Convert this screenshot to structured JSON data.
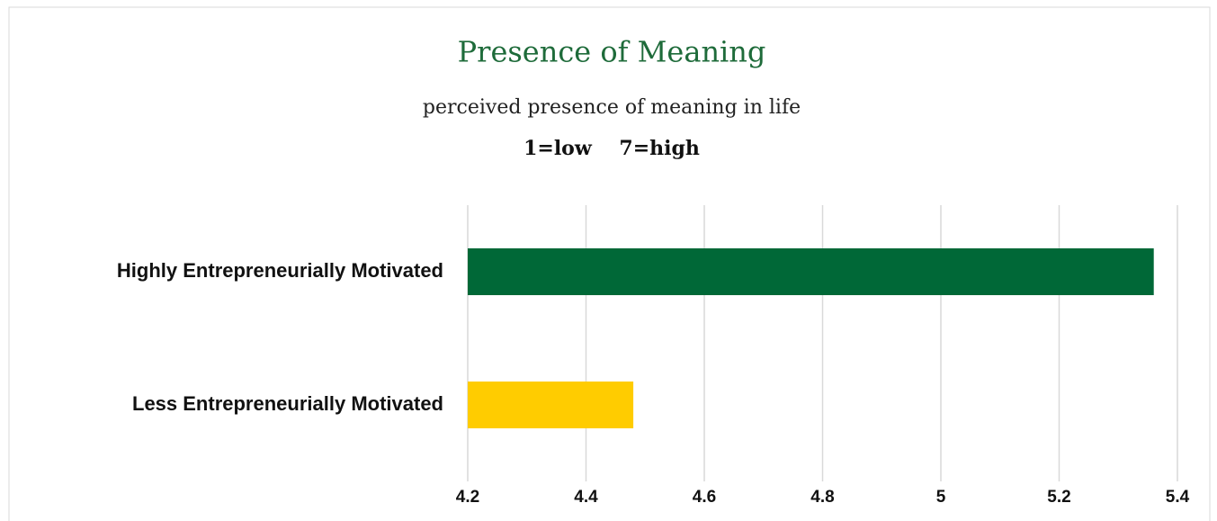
{
  "chart_data": {
    "type": "barh",
    "title": "Presence of Meaning",
    "subtitle": "perceived presence of meaning in life",
    "scale_note": "1=low    7=high",
    "categories": [
      "Highly Entrepreneurially Motivated",
      "Less Entrepreneurially Motivated"
    ],
    "values": [
      5.36,
      4.48
    ],
    "colors": [
      "#006837",
      "#ffcc00"
    ],
    "xlim": [
      4.2,
      5.4
    ],
    "xticks": [
      4.2,
      4.4,
      4.6,
      4.8,
      5,
      5.2,
      5.4
    ],
    "grid": true
  }
}
